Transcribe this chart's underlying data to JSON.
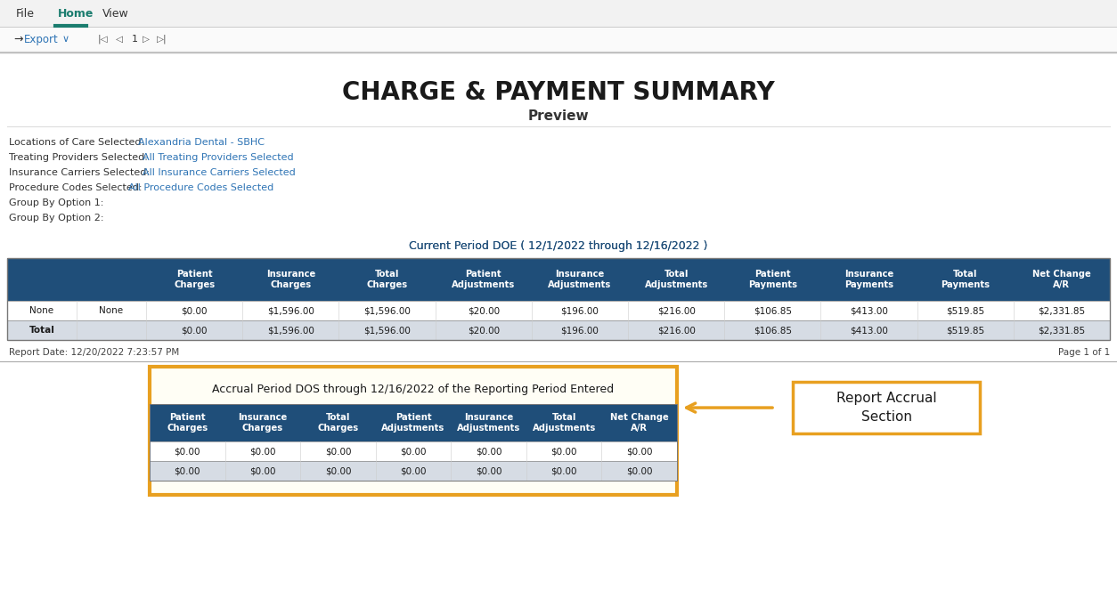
{
  "title": "CHARGE & PAYMENT SUMMARY",
  "subtitle": "Preview",
  "bg_color": "#ffffff",
  "toolbar_items": [
    "File",
    "Home",
    "View"
  ],
  "toolbar_active": "Home",
  "filter_labels": [
    "Locations of Care Selected:",
    "Treating Providers Selected:",
    "Insurance Carriers Selected:",
    "Procedure Codes Selected:",
    "Group By Option 1:",
    "Group By Option 2:"
  ],
  "filter_values": [
    "Alexandria Dental - SBHC",
    "All Treating Providers Selected",
    "All Insurance Carriers Selected",
    "All Procedure Codes Selected",
    "",
    ""
  ],
  "period_header_plain": "Current Period DOE ( ",
  "period_header_bold": "12/1/2022 through 12/16/2022",
  "period_header_end": " )",
  "period_header_color": "#1f4e79",
  "period_header_bold_color": "#c55a11",
  "table_header_bg": "#1f4e79",
  "table_header_color": "#ffffff",
  "table_cols": [
    "Patient\nCharges",
    "Insurance\nCharges",
    "Total\nCharges",
    "Patient\nAdjustments",
    "Insurance\nAdjustments",
    "Total\nAdjustments",
    "Patient\nPayments",
    "Insurance\nPayments",
    "Total\nPayments",
    "Net Change\nA/R"
  ],
  "data_row": [
    "None",
    "None",
    "$0.00",
    "$1,596.00",
    "$1,596.00",
    "$20.00",
    "$196.00",
    "$216.00",
    "$106.85",
    "$413.00",
    "$519.85",
    "$2,331.85"
  ],
  "total_row": [
    "Total",
    "",
    "$0.00",
    "$1,596.00",
    "$1,596.00",
    "$20.00",
    "$196.00",
    "$216.00",
    "$106.85",
    "$413.00",
    "$519.85",
    "$2,331.85"
  ],
  "report_date": "Report Date: 12/20/2022 7:23:57 PM",
  "page_info": "Page 1 of 1",
  "accrual_title_plain": "Accrual Period DOS through ",
  "accrual_title_bold": "12/16/2022",
  "accrual_title_end": " of the Reporting Period Entered",
  "accrual_cols": [
    "Patient\nCharges",
    "Insurance\nCharges",
    "Total\nCharges",
    "Patient\nAdjustments",
    "Insurance\nAdjustments",
    "Total\nAdjustments",
    "Net Change\nA/R"
  ],
  "accrual_row1": [
    "$0.00",
    "$0.00",
    "$0.00",
    "$0.00",
    "$0.00",
    "$0.00",
    "$0.00"
  ],
  "accrual_row2": [
    "$0.00",
    "$0.00",
    "$0.00",
    "$0.00",
    "$0.00",
    "$0.00",
    "$0.00"
  ],
  "highlight_color": "#e8a020",
  "highlight_fill": "#fffef5",
  "callout_text": "Report Accrual\nSection",
  "total_row_bg": "#d6dce4",
  "data_row_bg": "#ffffff",
  "link_color": "#2e74b5",
  "teal_underline": "#1a7c6e",
  "shadow_color": "#888888",
  "outer_border_color": "#aaaaaa"
}
